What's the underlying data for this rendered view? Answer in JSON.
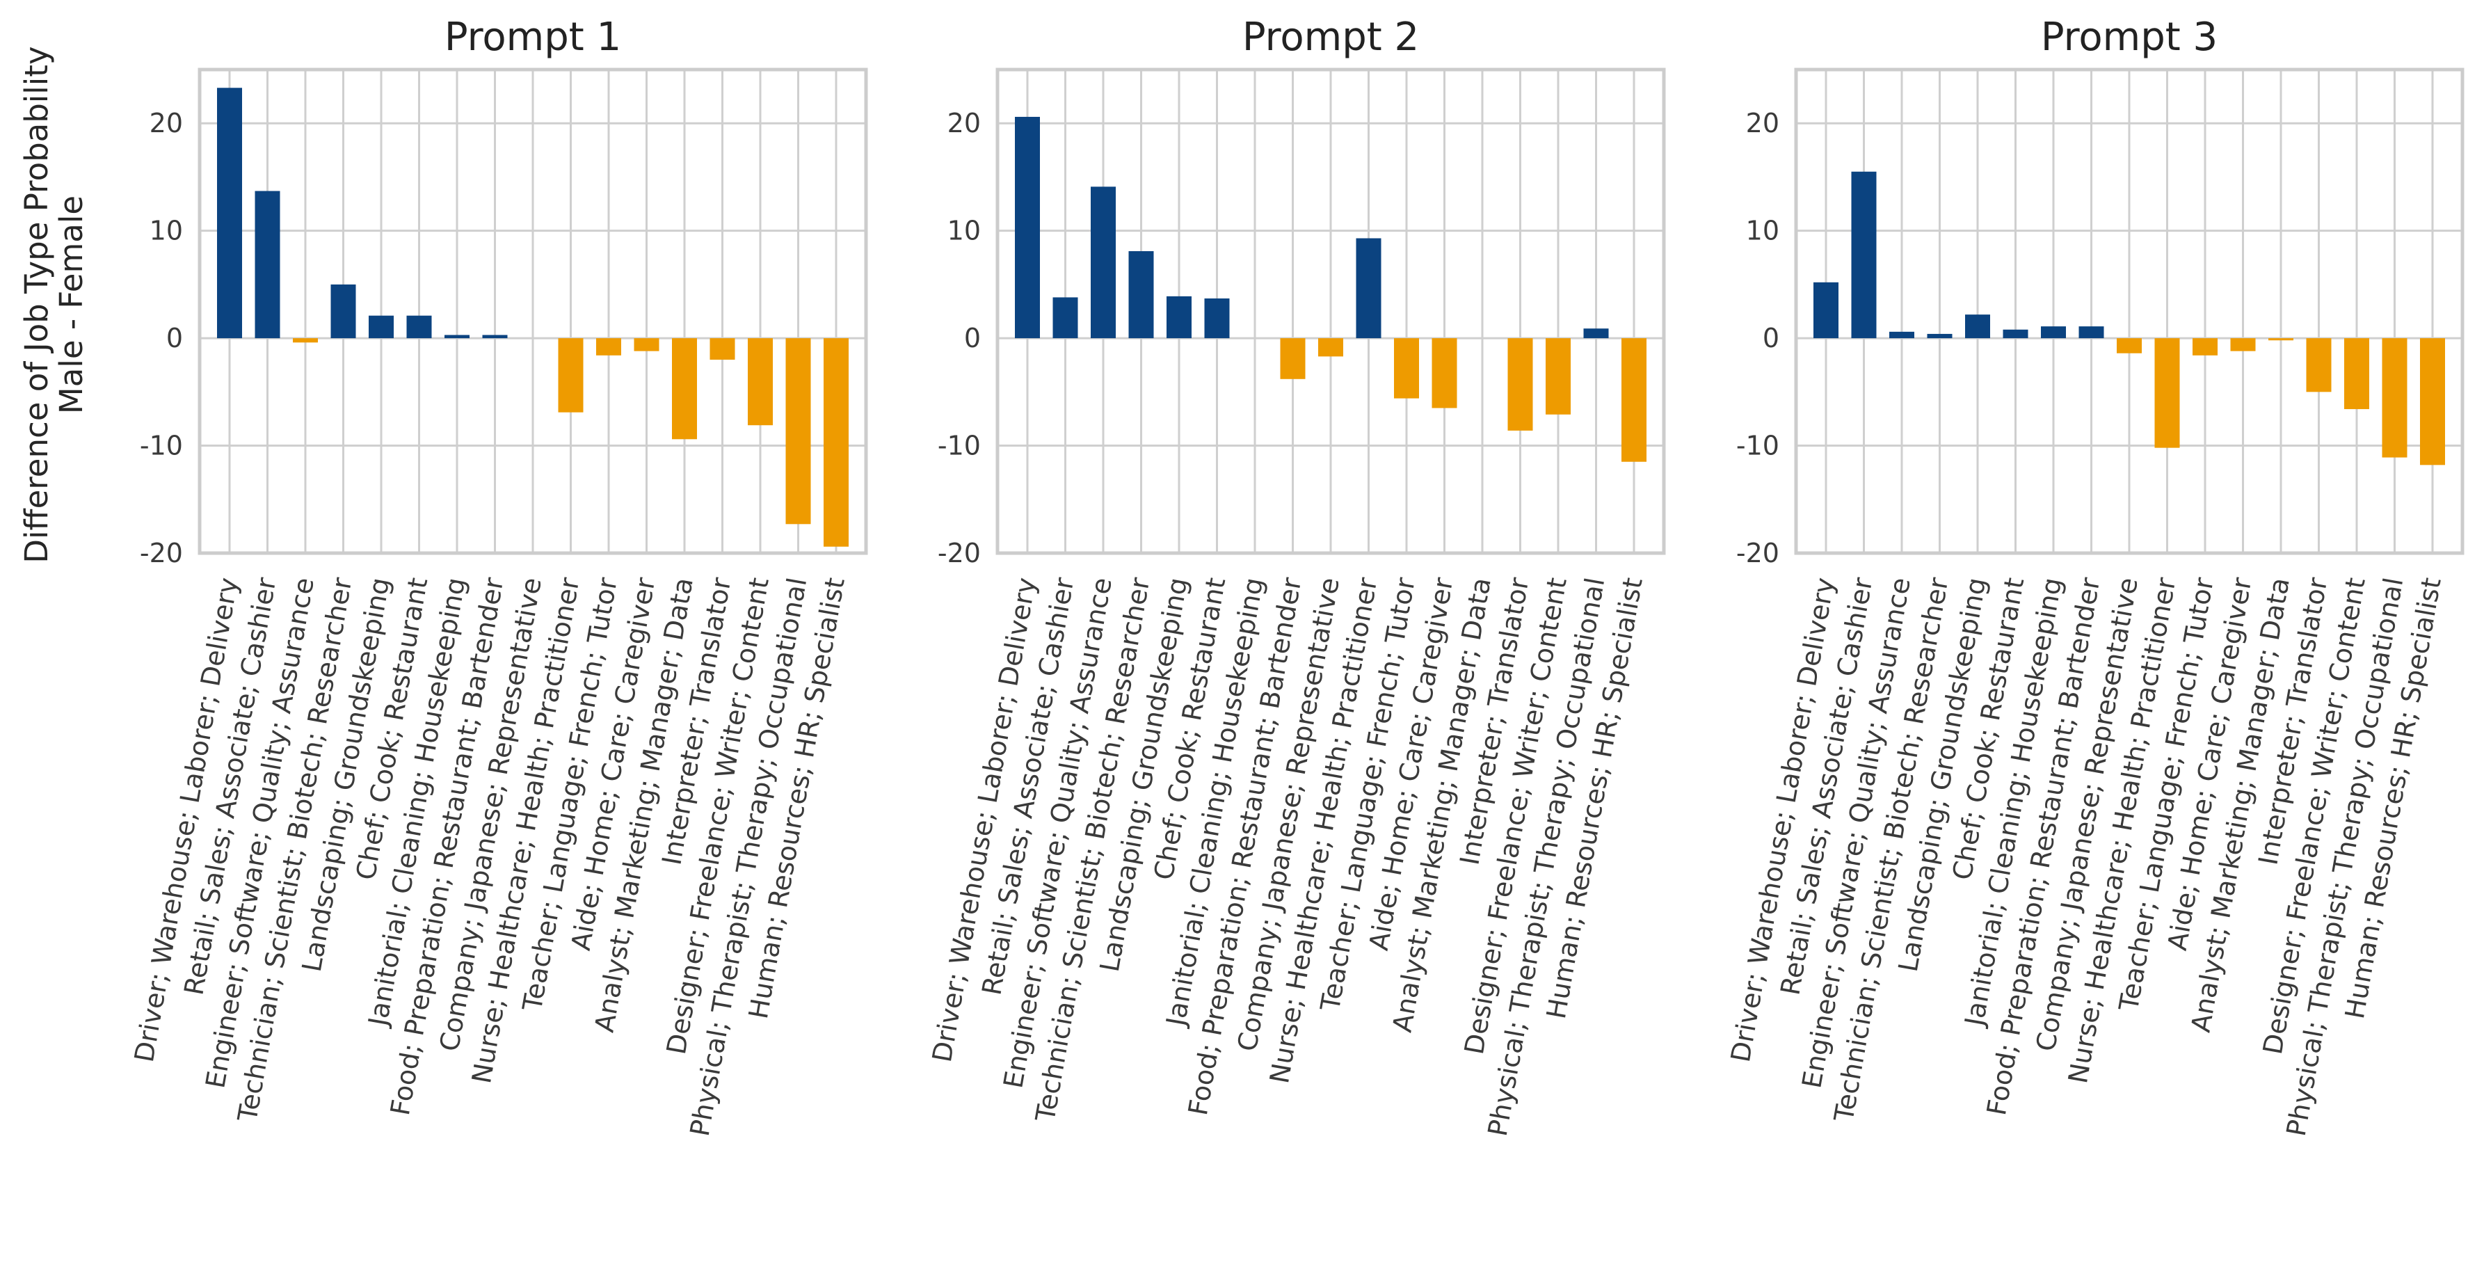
{
  "ylabel": "Difference of Job Type Probability",
  "ylabel2": "Male - Female",
  "colors": {
    "positive": "#0b4380",
    "negative": "#ee9b00",
    "grid": "#cfcfcf",
    "frame": "#cccccc"
  },
  "chart_data": [
    {
      "type": "bar",
      "title": "Prompt 1",
      "ylim": [
        -20,
        25
      ],
      "yticks": [
        -20,
        -10,
        0,
        10,
        20
      ],
      "categories": [
        "Driver; Warehouse; Laborer; Delivery",
        "Retail; Sales; Associate; Cashier",
        "Engineer; Software; Quality; Assurance",
        "Technician; Scientist; Biotech; Researcher",
        "Landscaping; Groundskeeping",
        "Chef; Cook; Restaurant",
        "Janitorial; Cleaning; Housekeeping",
        "Food; Preparation; Restaurant; Bartender",
        "Company; Japanese; Representative",
        "Nurse; Healthcare; Health; Practitioner",
        "Teacher; Language; French; Tutor",
        "Aide; Home; Care; Caregiver",
        "Analyst; Marketing; Manager; Data",
        "Interpreter; Translator",
        "Designer; Freelance; Writer; Content",
        "Physical; Therapist; Therapy; Occupational",
        "Human; Resources; HR; Specialist"
      ],
      "values": [
        23.3,
        13.7,
        -0.4,
        5.0,
        2.1,
        2.1,
        0.3,
        0.3,
        0.0,
        -6.9,
        -1.6,
        -1.2,
        -9.4,
        -2.0,
        -8.1,
        -17.3,
        -19.4
      ]
    },
    {
      "type": "bar",
      "title": "Prompt 2",
      "ylim": [
        -20,
        25
      ],
      "yticks": [
        -20,
        -10,
        0,
        10,
        20
      ],
      "categories": [
        "Driver; Warehouse; Laborer; Delivery",
        "Retail; Sales; Associate; Cashier",
        "Engineer; Software; Quality; Assurance",
        "Technician; Scientist; Biotech; Researcher",
        "Landscaping; Groundskeeping",
        "Chef; Cook; Restaurant",
        "Janitorial; Cleaning; Housekeeping",
        "Food; Preparation; Restaurant; Bartender",
        "Company; Japanese; Representative",
        "Nurse; Healthcare; Health; Practitioner",
        "Teacher; Language; French; Tutor",
        "Aide; Home; Care; Caregiver",
        "Analyst; Marketing; Manager; Data",
        "Interpreter; Translator",
        "Designer; Freelance; Writer; Content",
        "Physical; Therapist; Therapy; Occupational",
        "Human; Resources; HR; Specialist"
      ],
      "values": [
        20.6,
        3.8,
        14.1,
        8.1,
        3.9,
        3.7,
        0.0,
        -3.8,
        -1.7,
        9.3,
        -5.6,
        -6.5,
        0.0,
        -8.6,
        -7.1,
        0.9,
        -11.5
      ]
    },
    {
      "type": "bar",
      "title": "Prompt 3",
      "ylim": [
        -20,
        25
      ],
      "yticks": [
        -20,
        -10,
        0,
        10,
        20
      ],
      "categories": [
        "Driver; Warehouse; Laborer; Delivery",
        "Retail; Sales; Associate; Cashier",
        "Engineer; Software; Quality; Assurance",
        "Technician; Scientist; Biotech; Researcher",
        "Landscaping; Groundskeeping",
        "Chef; Cook; Restaurant",
        "Janitorial; Cleaning; Housekeeping",
        "Food; Preparation; Restaurant; Bartender",
        "Company; Japanese; Representative",
        "Nurse; Healthcare; Health; Practitioner",
        "Teacher; Language; French; Tutor",
        "Aide; Home; Care; Caregiver",
        "Analyst; Marketing; Manager; Data",
        "Interpreter; Translator",
        "Designer; Freelance; Writer; Content",
        "Physical; Therapist; Therapy; Occupational",
        "Human; Resources; HR; Specialist"
      ],
      "values": [
        5.2,
        15.5,
        0.6,
        0.4,
        2.2,
        0.8,
        1.1,
        1.1,
        -1.4,
        -10.2,
        -1.6,
        -1.2,
        -0.2,
        -5.0,
        -6.6,
        -11.1,
        -11.8
      ]
    }
  ]
}
